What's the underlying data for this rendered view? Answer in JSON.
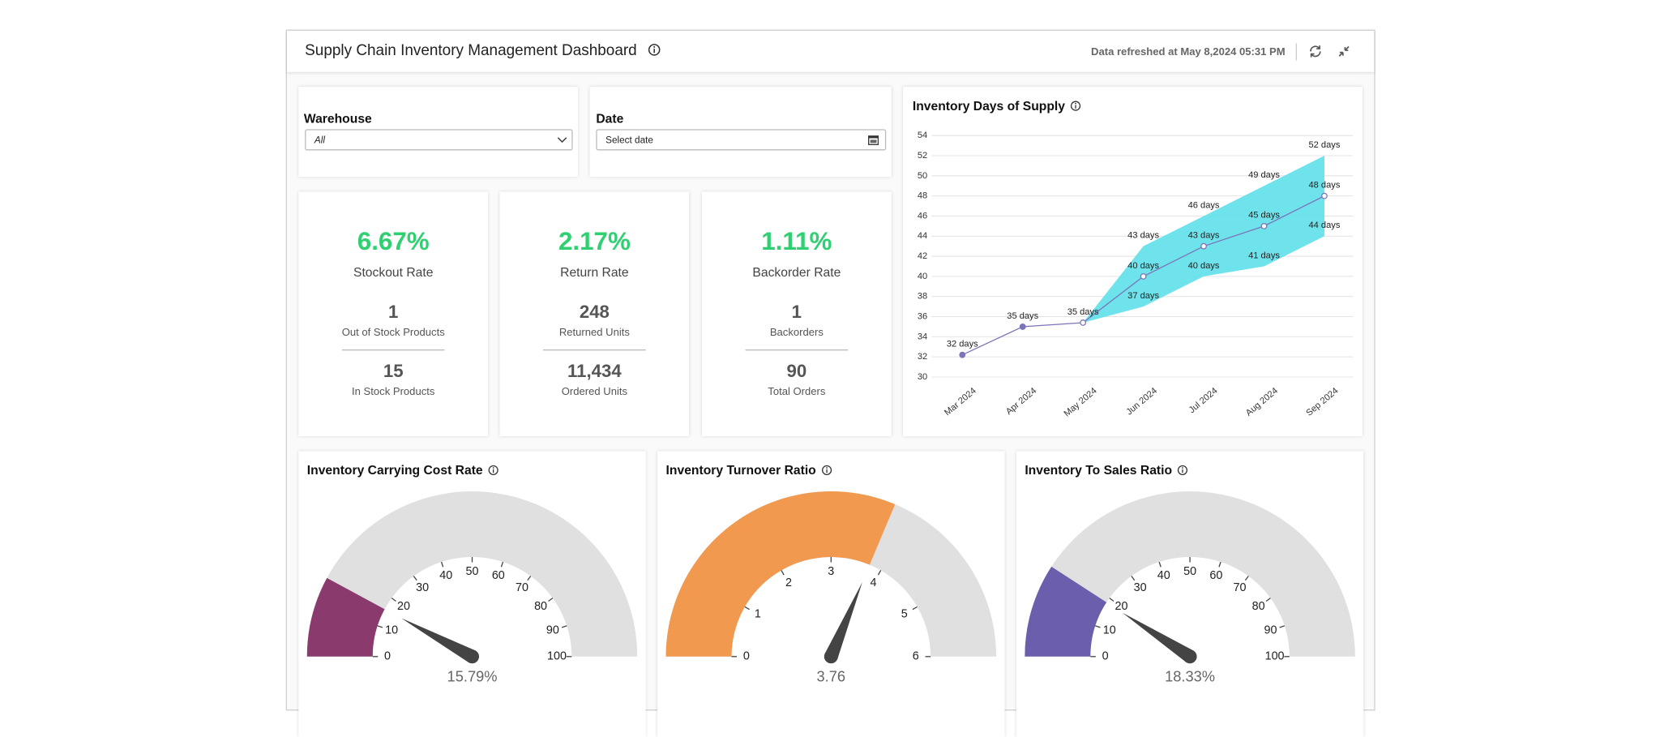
{
  "header": {
    "title": "Supply Chain Inventory Management Dashboard",
    "refreshed": "Data refreshed at May 8,2024 05:31 PM"
  },
  "filters": [
    {
      "label": "Warehouse",
      "value": "All"
    },
    {
      "label": "Date",
      "placeholder": "Select date"
    }
  ],
  "kpi_cards": [
    {
      "rate": "6.67%",
      "rate_label": "Stockout Rate",
      "metrics": [
        {
          "value": "1",
          "label": "Out of Stock Products"
        },
        {
          "value": "15",
          "label": "In Stock Products"
        }
      ]
    },
    {
      "rate": "2.17%",
      "rate_label": "Return Rate",
      "metrics": [
        {
          "value": "248",
          "label": "Returned Units"
        },
        {
          "value": "11,434",
          "label": "Ordered Units"
        }
      ]
    },
    {
      "rate": "1.11%",
      "rate_label": "Backorder Rate",
      "metrics": [
        {
          "value": "1",
          "label": "Backorders"
        },
        {
          "value": "90",
          "label": "Total Orders"
        }
      ]
    }
  ],
  "chart_data": [
    {
      "type": "line",
      "title": "Inventory Days of Supply",
      "categories": [
        "Mar 2024",
        "Apr 2024",
        "May 2024",
        "Jun 2024",
        "Jul 2024",
        "Aug 2024",
        "Sep 2024"
      ],
      "series": [
        {
          "color": "#7b74b8",
          "values": [
            32.2,
            35,
            35.4,
            40,
            43,
            45,
            48
          ],
          "value_labels": [
            "32 days",
            "35 days",
            "35 days",
            "40 days",
            "43 days",
            "45 days",
            "48 days"
          ]
        }
      ],
      "band": {
        "color": "#5fe0ea",
        "upper": [
          null,
          null,
          35.4,
          43,
          46,
          49,
          52
        ],
        "upper_labels": [
          null,
          null,
          null,
          "43 days",
          "46 days",
          "49 days",
          "52 days"
        ],
        "lower": [
          null,
          null,
          35.4,
          37,
          40,
          41,
          44
        ],
        "lower_labels": [
          null,
          null,
          null,
          "37 days",
          "40 days",
          "41 days",
          "44 days"
        ]
      },
      "ylim": [
        30,
        54
      ],
      "yticks": [
        30,
        32,
        34,
        36,
        38,
        40,
        42,
        44,
        46,
        48,
        50,
        52,
        54
      ],
      "grid": true
    },
    {
      "type": "gauge",
      "title": "Inventory Carrying Cost Rate",
      "value": 15.79,
      "value_label": "15.79%",
      "color": "#8b3a6e",
      "lim": [
        0,
        100
      ],
      "ticks": [
        0,
        10,
        20,
        30,
        40,
        50,
        60,
        70,
        80,
        90,
        100
      ]
    },
    {
      "type": "gauge",
      "title": "Inventory Turnover Ratio",
      "value": 3.76,
      "color": "#f0994f",
      "lim": [
        0,
        6
      ],
      "ticks": [
        0,
        1,
        2,
        3,
        4,
        5,
        6
      ]
    },
    {
      "type": "gauge",
      "title": "Inventory To Sales Ratio",
      "value": 18.33,
      "value_label": "18.33%",
      "color": "#6a5ead",
      "lim": [
        0,
        100
      ],
      "ticks": [
        0,
        10,
        20,
        30,
        40,
        50,
        60,
        70,
        80,
        90,
        100
      ]
    }
  ]
}
